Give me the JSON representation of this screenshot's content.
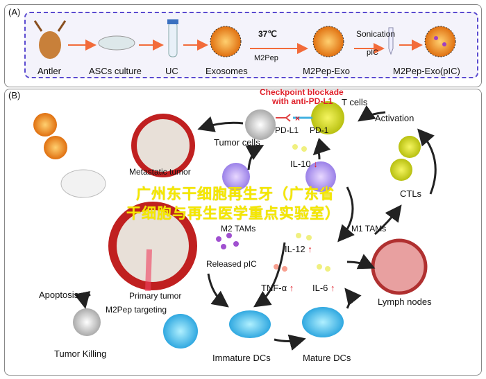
{
  "panel_a": {
    "label": "(A)",
    "steps": [
      "Antler",
      "ASCs culture",
      "UC",
      "Exosomes",
      "M2Pep-Exo",
      "M2Pep-Exo(pIC)"
    ],
    "temp": "37℃",
    "m2pep": "M2Pep",
    "sonication": "Sonication",
    "pic": "pIC"
  },
  "panel_b": {
    "label": "(B)",
    "checkpoint": "Checkpoint blockade",
    "checkpoint2": "with anti-PD-L1",
    "t_cells": "T cells",
    "pd_l1": "PD-L1",
    "pd_1": "PD-1",
    "activation": "Activation",
    "tumor_cells": "Tumor cells",
    "metastatic": "Metastatic tumor",
    "il10": "IL-10",
    "m2_tams": "M2 TAMs",
    "m1_tams": "M1 TAMs",
    "ctls": "CTLs",
    "il12": "IL-12",
    "released_pic": "Released pIC",
    "tnf": "TNF-α",
    "il6": "IL-6",
    "primary": "Primary tumor",
    "apoptosis": "Apoptosis",
    "targeting": "M2Pep targeting",
    "lymph": "Lymph nodes",
    "tumor_killing": "Tumor Killing",
    "immature": "Immature DCs",
    "mature": "Mature DCs",
    "down_arrow": "↓",
    "up_arrow": "↑"
  },
  "watermark": {
    "line1": "广州东干细胞再生牙（广东省",
    "line2": "干细胞与再生医学重点实验室）"
  },
  "colors": {
    "dashed_border": "#5b4bd0",
    "arrow": "#f26b3a",
    "red_text": "#e0202a",
    "watermark": "#f5e800"
  }
}
